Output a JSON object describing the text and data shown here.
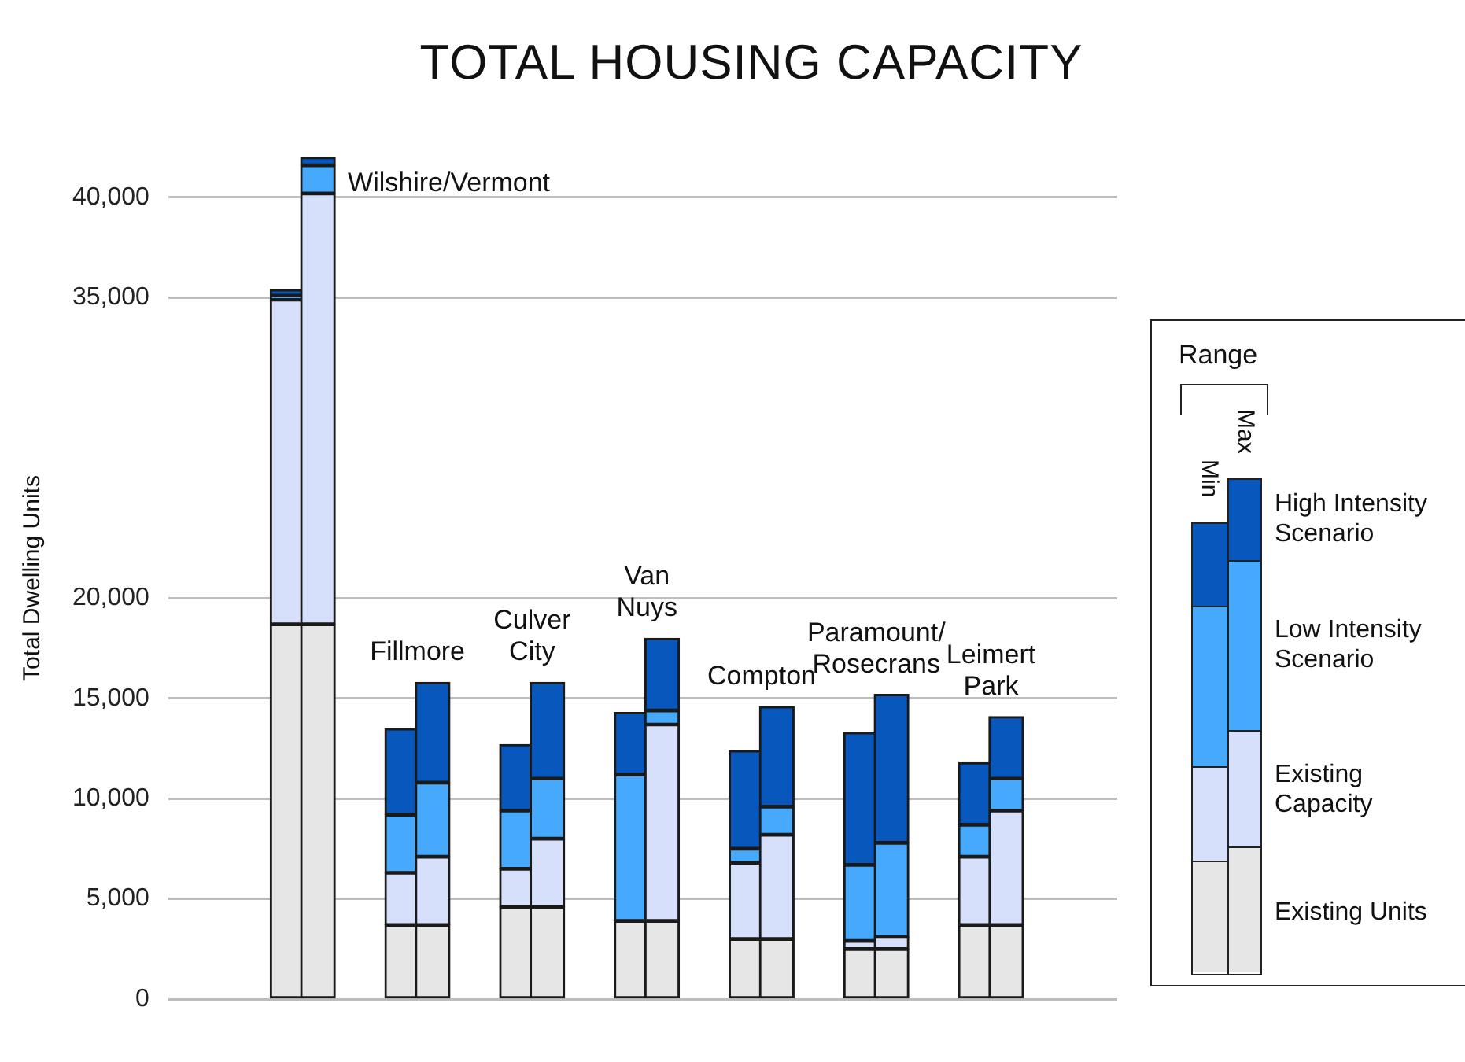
{
  "chart_data": {
    "type": "bar",
    "title": "TOTAL HOUSING CAPACITY",
    "ylabel": "Total Dwelling Units",
    "legend_title": "Range",
    "categories": [
      null,
      null,
      null,
      null,
      null,
      null,
      null,
      null,
      null,
      null,
      null,
      null,
      null,
      null
    ],
    "series": [
      {
        "name": "Existing Units",
        "color": "#e6e6e6",
        "values": [
          18700,
          18700,
          3700,
          3700,
          4600,
          4600,
          3900,
          3900,
          3000,
          3000,
          2500,
          2500,
          3700,
          3700
        ]
      },
      {
        "name": "Existing Capacity",
        "color": "#d6e0fb",
        "values": [
          16200,
          21500,
          2600,
          3400,
          1900,
          3400,
          0,
          9800,
          3800,
          5200,
          400,
          600,
          3400,
          5700
        ]
      },
      {
        "name": "Low Intensity Scenario",
        "color": "#47a9fb",
        "values": [
          200,
          1400,
          2900,
          3700,
          2900,
          3000,
          7300,
          700,
          700,
          1400,
          3800,
          4700,
          1600,
          1600
        ]
      },
      {
        "name": "High Intensity Scenario",
        "color": "#0857bc",
        "values": [
          300,
          400,
          4300,
          5000,
          3300,
          4800,
          3100,
          3600,
          4900,
          5000,
          6600,
          7400,
          3100,
          3100
        ]
      }
    ],
    "stacked": true,
    "ylim": [
      0,
      42000
    ],
    "yticks": [
      0,
      {
        "value": 5000,
        "label": "5,000"
      },
      {
        "value": 10000,
        "label": "10,000"
      },
      {
        "value": 15000,
        "label": "15,000"
      },
      {
        "value": 20000,
        "label": "20,000"
      },
      {
        "value": 35000,
        "label": "35,000"
      },
      {
        "value": 40000,
        "label": "40,000"
      }
    ],
    "grid": "y",
    "legend": "right",
    "annotations": [
      "Wilshire/Vermont",
      "Fillmore",
      "Culver City",
      "Van Nuys",
      "Compton",
      "Paramount/Rosecrans",
      "Leimert Park",
      "Min",
      "Max"
    ]
  }
}
